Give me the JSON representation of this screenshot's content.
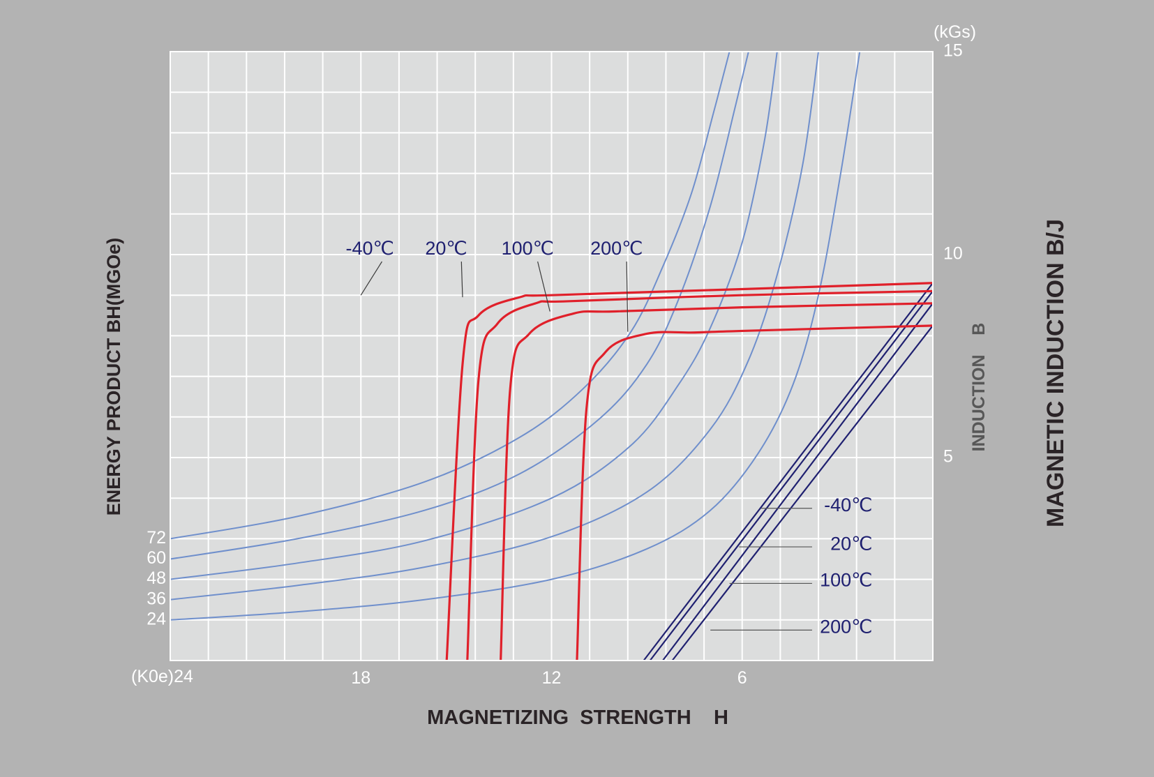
{
  "chart_data": {
    "type": "line",
    "title": "",
    "colors": {
      "background": "#b3b3b3",
      "plot_area": "#dcdddd",
      "grid": "#ffffff",
      "demag_curve": "#e0202a",
      "energy_curve": "#6f8fcc",
      "recoil_line": "#1f2070",
      "label": "#1f2070",
      "axis_title": "#2a2326",
      "tick": "#ffffff"
    },
    "x_axis": {
      "label": "MAGNETIZING  STRENGTH    H",
      "unit_label": "(K0e)24",
      "range": [
        24,
        0
      ],
      "reversed": true,
      "ticks": [
        {
          "value": 18,
          "label": "18"
        },
        {
          "value": 12,
          "label": "12"
        },
        {
          "value": 6,
          "label": "6"
        }
      ],
      "grid_step": 1.2
    },
    "y_axis_right": {
      "label": "MAGNETIC INDUCTION B/J",
      "inner_label": "INDUCTION    B",
      "unit_label": "(kGs)",
      "range": [
        0,
        15
      ],
      "ticks": [
        {
          "value": 15,
          "label": "15"
        },
        {
          "value": 10,
          "label": "10"
        },
        {
          "value": 5,
          "label": "5"
        }
      ],
      "grid_step": 1
    },
    "y_axis_left": {
      "label": "ENERGY PRODUCT BH(MGOe)",
      "ticks": [
        {
          "label": "72",
          "b": 3.0
        },
        {
          "label": "60",
          "b": 2.5
        },
        {
          "label": "48",
          "b": 2.0
        },
        {
          "label": "36",
          "b": 1.5
        },
        {
          "label": "24",
          "b": 1.0
        }
      ]
    },
    "series": [
      {
        "name": "-40℃",
        "group": "demagnetization",
        "points": [
          [
            15.3,
            0
          ],
          [
            14.8,
            7.3
          ],
          [
            14.3,
            8.5
          ],
          [
            13.0,
            8.95
          ],
          [
            12.0,
            9.0
          ],
          [
            6.0,
            9.15
          ],
          [
            0.0,
            9.3
          ]
        ]
      },
      {
        "name": "20℃",
        "group": "demagnetization",
        "points": [
          [
            14.65,
            0
          ],
          [
            14.3,
            6.9
          ],
          [
            13.7,
            8.3
          ],
          [
            12.5,
            8.8
          ],
          [
            11.5,
            8.85
          ],
          [
            6.0,
            9.0
          ],
          [
            0.0,
            9.1
          ]
        ]
      },
      {
        "name": "100℃",
        "group": "demagnetization",
        "points": [
          [
            13.6,
            0
          ],
          [
            13.3,
            6.7
          ],
          [
            12.7,
            8.05
          ],
          [
            11.3,
            8.55
          ],
          [
            10.0,
            8.6
          ],
          [
            6.0,
            8.7
          ],
          [
            0.0,
            8.8
          ]
        ]
      },
      {
        "name": "200℃",
        "group": "demagnetization",
        "points": [
          [
            11.2,
            0
          ],
          [
            10.9,
            6.2
          ],
          [
            10.3,
            7.6
          ],
          [
            9.0,
            8.05
          ],
          [
            7.5,
            8.08
          ],
          [
            6.0,
            8.12
          ],
          [
            0.0,
            8.25
          ]
        ]
      },
      {
        "name": "72",
        "group": "energy_product",
        "points": [
          [
            24.0,
            3.0
          ],
          [
            20.0,
            3.55
          ],
          [
            16.0,
            4.4
          ],
          [
            13.0,
            5.5
          ],
          [
            11.0,
            6.7
          ],
          [
            9.5,
            8.1
          ],
          [
            8.5,
            9.7
          ],
          [
            7.6,
            11.5
          ],
          [
            6.9,
            13.5
          ],
          [
            6.4,
            15.0
          ]
        ]
      },
      {
        "name": "60",
        "group": "energy_product",
        "points": [
          [
            24.0,
            2.5
          ],
          [
            20.0,
            3.0
          ],
          [
            16.0,
            3.7
          ],
          [
            13.0,
            4.6
          ],
          [
            10.5,
            5.95
          ],
          [
            9.0,
            7.3
          ],
          [
            8.0,
            8.9
          ],
          [
            7.0,
            11.2
          ],
          [
            6.2,
            13.7
          ],
          [
            5.8,
            15.0
          ]
        ]
      },
      {
        "name": "48",
        "group": "energy_product",
        "points": [
          [
            24.0,
            2.0
          ],
          [
            20.0,
            2.4
          ],
          [
            16.0,
            2.95
          ],
          [
            12.0,
            4.0
          ],
          [
            9.5,
            5.3
          ],
          [
            8.0,
            6.8
          ],
          [
            7.0,
            8.2
          ],
          [
            6.0,
            10.3
          ],
          [
            5.3,
            12.8
          ],
          [
            4.9,
            15.0
          ]
        ]
      },
      {
        "name": "36",
        "group": "energy_product",
        "points": [
          [
            24.0,
            1.5
          ],
          [
            20.0,
            1.85
          ],
          [
            16.0,
            2.3
          ],
          [
            12.0,
            3.05
          ],
          [
            9.0,
            4.15
          ],
          [
            7.0,
            5.7
          ],
          [
            5.8,
            7.4
          ],
          [
            4.9,
            9.5
          ],
          [
            4.1,
            12.2
          ],
          [
            3.6,
            15.0
          ]
        ]
      },
      {
        "name": "24",
        "group": "energy_product",
        "points": [
          [
            24.0,
            1.0
          ],
          [
            20.0,
            1.2
          ],
          [
            16.0,
            1.5
          ],
          [
            12.0,
            2.0
          ],
          [
            9.0,
            2.75
          ],
          [
            7.0,
            3.7
          ],
          [
            5.5,
            5.1
          ],
          [
            4.4,
            6.8
          ],
          [
            3.6,
            9.0
          ],
          [
            2.9,
            12.0
          ],
          [
            2.3,
            15.0
          ]
        ]
      },
      {
        "name": "-40℃",
        "group": "recoil",
        "points": [
          [
            9.1,
            0
          ],
          [
            0.0,
            9.3
          ]
        ]
      },
      {
        "name": "20℃",
        "group": "recoil",
        "points": [
          [
            8.9,
            0
          ],
          [
            0.0,
            9.1
          ]
        ]
      },
      {
        "name": "100℃",
        "group": "recoil",
        "points": [
          [
            8.5,
            0
          ],
          [
            0.0,
            8.8
          ]
        ]
      },
      {
        "name": "200℃",
        "group": "recoil",
        "points": [
          [
            8.2,
            0
          ],
          [
            0.0,
            8.25
          ]
        ]
      }
    ],
    "demag_labels": [
      {
        "text": "-40℃",
        "series": 0,
        "label_at": [
          17.6,
          10.0
        ],
        "leader_to": [
          18.0,
          9.0
        ]
      },
      {
        "text": "20℃",
        "series": 1,
        "label_at": [
          15.1,
          10.0
        ],
        "leader_to": [
          14.8,
          8.95
        ]
      },
      {
        "text": "100℃",
        "series": 2,
        "label_at": [
          12.7,
          10.0
        ],
        "leader_to": [
          12.05,
          8.6
        ]
      },
      {
        "text": "200℃",
        "series": 3,
        "label_at": [
          9.9,
          10.0
        ],
        "leader_to": [
          9.6,
          8.1
        ]
      }
    ],
    "recoil_labels": [
      {
        "text": "-40℃",
        "label_at": [
          1.9,
          3.8
        ],
        "leader_from": [
          5.4,
          3.75
        ],
        "leader_to": [
          3.8,
          3.75
        ]
      },
      {
        "text": "20℃",
        "label_at": [
          1.9,
          2.85
        ],
        "leader_from": [
          6.1,
          2.8
        ],
        "leader_to": [
          3.8,
          2.8
        ]
      },
      {
        "text": "100℃",
        "label_at": [
          1.9,
          1.95
        ],
        "leader_from": [
          6.4,
          1.9
        ],
        "leader_to": [
          3.8,
          1.9
        ]
      },
      {
        "text": "200℃",
        "label_at": [
          1.9,
          0.8
        ],
        "leader_from": [
          7.0,
          0.75
        ],
        "leader_to": [
          3.8,
          0.75
        ]
      }
    ]
  }
}
